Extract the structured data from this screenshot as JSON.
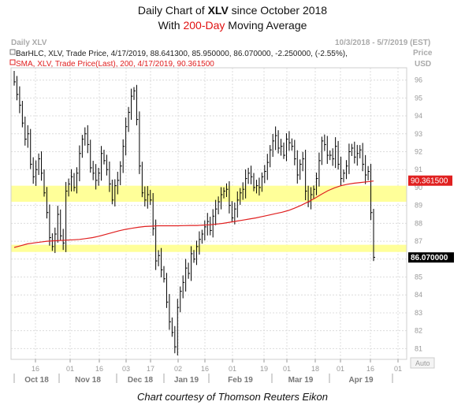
{
  "title": {
    "line1_pre": "Daily Chart of ",
    "line1_ticker": "XLV",
    "line1_post": " since October 2018",
    "line2_pre": "With ",
    "line2_hl": "200-Day",
    "line2_post": " Moving Average"
  },
  "caption": "Chart courtesy of Thomson Reuters Eikon",
  "header": {
    "left": "Daily XLV",
    "right": "10/3/2018 - 5/7/2019 (EST)",
    "price": "Price",
    "currency": "USD",
    "auto": "Auto"
  },
  "legend": {
    "bar": "BarHLC, XLV, Trade Price, 4/17/2019, 88.641300, 85.950000, 86.070000, -2.250000, (-2.55%),",
    "sma": "SMA, XLV, Trade Price(Last), 200, 4/17/2019, 90.361500"
  },
  "colors": {
    "bars": "#000000",
    "sma": "#e02020",
    "band": "#ffff99",
    "sma_label_bg": "#e02020"
  },
  "chart_data": {
    "type": "line",
    "y_ticks": [
      81,
      82,
      83,
      84,
      85,
      86,
      87,
      88,
      89,
      90,
      91,
      92,
      93,
      94,
      95,
      96
    ],
    "ylim": [
      80.4,
      96.6
    ],
    "x_ticks": [
      "16",
      "01",
      "16",
      "03",
      "17",
      "02",
      "16",
      "01",
      "19",
      "01",
      "18",
      "01",
      "16",
      "01"
    ],
    "month_labels": [
      "Oct 18",
      "Nov 18",
      "Dec 18",
      "Jan 19",
      "Feb 19",
      "Mar 19",
      "Apr 19"
    ],
    "highlight_bands": [
      {
        "low": 89.2,
        "high": 90.1
      },
      {
        "low": 86.4,
        "high": 86.8
      }
    ],
    "series": [
      {
        "name": "BarHLC, XLV, Trade Price",
        "style": "ohlc_bars",
        "close": [
          95.9,
          95.2,
          94.6,
          93.6,
          92.7,
          93.0,
          91.3,
          90.6,
          91.0,
          91.6,
          90.8,
          89.7,
          88.6,
          87.2,
          86.7,
          87.4,
          88.5,
          87.3,
          86.9,
          89.8,
          90.2,
          90.6,
          90.0,
          90.8,
          91.9,
          92.7,
          93.0,
          92.4,
          91.1,
          90.8,
          90.4,
          90.8,
          91.9,
          91.5,
          91.0,
          90.2,
          89.3,
          90.1,
          90.4,
          91.2,
          92.3,
          93.4,
          94.2,
          95.1,
          95.4,
          93.8,
          91.2,
          89.7,
          89.3,
          89.6,
          89.3,
          87.7,
          85.9,
          86.2,
          85.4,
          84.9,
          83.6,
          82.5,
          81.9,
          81.1,
          83.3,
          84.2,
          84.7,
          85.5,
          85.2,
          86.3,
          86.0,
          86.7,
          87.1,
          87.4,
          87.8,
          88.1,
          87.6,
          88.4,
          88.8,
          89.2,
          89.6,
          89.8,
          89.9,
          89.0,
          88.3,
          88.8,
          89.3,
          89.7,
          89.9,
          90.5,
          90.8,
          90.6,
          90.0,
          90.1,
          90.0,
          90.6,
          90.9,
          91.4,
          92.1,
          92.6,
          92.9,
          92.2,
          92.3,
          91.8,
          92.7,
          92.5,
          92.3,
          91.6,
          90.7,
          91.3,
          91.6,
          89.8,
          89.2,
          89.6,
          89.9,
          90.5,
          91.5,
          92.6,
          92.4,
          91.8,
          91.8,
          91.6,
          92.3,
          91.3,
          90.5,
          90.8,
          91.2,
          92.0,
          92.2,
          91.7,
          91.9,
          92.1,
          91.3,
          90.7,
          90.9,
          88.6,
          86.1
        ],
        "sma_200": [
          86.65,
          86.75,
          86.85,
          86.9,
          86.95,
          87.0,
          87.02,
          87.04,
          87.06,
          87.08,
          87.1,
          87.15,
          87.2,
          87.28,
          87.38,
          87.48,
          87.58,
          87.66,
          87.72,
          87.78,
          87.82,
          87.84,
          87.86,
          87.86,
          87.86,
          87.86,
          87.87,
          87.88,
          87.88,
          87.9,
          87.92,
          87.96,
          88.0,
          88.06,
          88.12,
          88.18,
          88.24,
          88.3,
          88.38,
          88.46,
          88.54,
          88.62,
          88.72,
          88.86,
          89.02,
          89.2,
          89.4,
          89.62,
          89.82,
          89.98,
          90.1,
          90.18,
          90.24,
          90.28,
          90.32,
          90.36
        ]
      }
    ],
    "sma_label": "90.361500",
    "last_price_label": "86.070000"
  }
}
